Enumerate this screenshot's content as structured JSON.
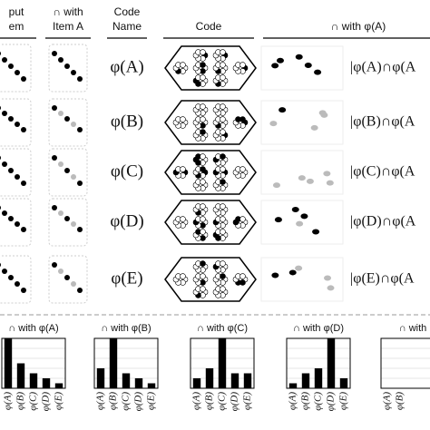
{
  "header": {
    "input_item": [
      "put",
      "em"
    ],
    "with_item_a": [
      "∩ with",
      "Item A"
    ],
    "code_name": [
      "Code",
      "Name"
    ],
    "code": "Code",
    "with_phi_a": "∩ with φ(A)"
  },
  "rows": [
    {
      "name": "φ(A)",
      "overlap": "|φ(A)∩φ(A"
    },
    {
      "name": "φ(B)",
      "overlap": "|φ(B)∩φ(A"
    },
    {
      "name": "φ(C)",
      "overlap": "|φ(C)∩φ(A"
    },
    {
      "name": "φ(D)",
      "overlap": "|φ(D)∩φ(A"
    },
    {
      "name": "φ(E)",
      "overlap": "|φ(E)∩φ(A"
    }
  ],
  "chart_data": [
    {
      "type": "bar",
      "title": "∩ with φ(A)",
      "categories": [
        "φ(A)",
        "φ(B)",
        "φ(C)",
        "φ(D)",
        "φ(E)"
      ],
      "values": [
        10,
        5,
        3,
        2,
        1
      ],
      "color": "#000000",
      "ylim": [
        0,
        10
      ],
      "yticks": [
        0,
        2,
        4,
        6,
        8,
        10
      ],
      "grid": true
    },
    {
      "type": "bar",
      "title": "∩ with φ(B)",
      "categories": [
        "φ(A)",
        "φ(B)",
        "φ(C)",
        "φ(D)",
        "φ(E)"
      ],
      "values": [
        4,
        10,
        3,
        2,
        1
      ],
      "color": "#000000",
      "ylim": [
        0,
        10
      ],
      "yticks": [
        0,
        2,
        4,
        6,
        8,
        10
      ],
      "grid": true
    },
    {
      "type": "bar",
      "title": "∩ with φ(C)",
      "categories": [
        "φ(A)",
        "φ(B)",
        "φ(C)",
        "φ(D)",
        "φ(E)"
      ],
      "values": [
        2,
        4,
        10,
        3,
        3
      ],
      "color": "#000000",
      "ylim": [
        0,
        10
      ],
      "yticks": [
        0,
        2,
        4,
        6,
        8,
        10
      ],
      "grid": true
    },
    {
      "type": "bar",
      "title": "∩ with φ(D)",
      "categories": [
        "φ(A)",
        "φ(B)",
        "φ(C)",
        "φ(D)",
        "φ(E)"
      ],
      "values": [
        1,
        3,
        4,
        10,
        2
      ],
      "color": "#000000",
      "ylim": [
        0,
        10
      ],
      "yticks": [
        0,
        2,
        4,
        6,
        8,
        10
      ],
      "grid": true
    },
    {
      "type": "bar",
      "title": "∩ with",
      "categories": [
        "φ(A)",
        "φ(B)"
      ],
      "values": [
        null,
        null
      ],
      "color": "#000000",
      "ylim": [
        0,
        10
      ],
      "yticks": [
        0,
        2,
        4,
        6,
        8,
        10
      ],
      "grid": true
    }
  ]
}
